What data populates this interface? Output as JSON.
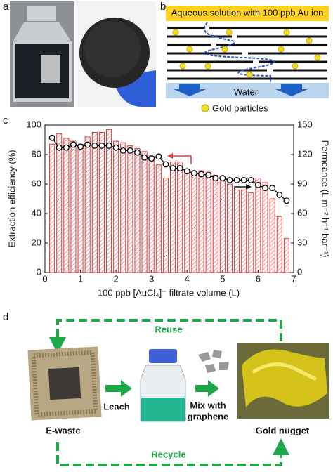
{
  "panel_labels": [
    "a",
    "b",
    "c",
    "d"
  ],
  "panel_b": {
    "top_label": "Aqueous solution with 100 ppb Au ion",
    "bottom_label": "Water",
    "legend": "Gold particles"
  },
  "chart_data": {
    "type": "combo",
    "xlabel": "100 ppb [AuCl₄]⁻ filtrate volume (L)",
    "ylabel": "Extraction efficiency (%)",
    "y2label": "Permeance (L m⁻² h⁻¹ bar⁻¹)",
    "x": [
      0.2,
      0.4,
      0.6,
      0.8,
      1.0,
      1.2,
      1.4,
      1.6,
      1.8,
      2.0,
      2.2,
      2.4,
      2.6,
      2.8,
      3.0,
      3.2,
      3.4,
      3.6,
      3.8,
      4.0,
      4.2,
      4.4,
      4.6,
      4.8,
      5.0,
      5.2,
      5.4,
      5.6,
      5.8,
      6.0,
      6.2,
      6.4,
      6.6,
      6.8
    ],
    "series": [
      {
        "type": "bar",
        "color": "#e03c3c",
        "values": [
          87,
          94,
          91,
          89,
          87,
          92,
          95,
          95,
          97,
          89,
          88,
          86,
          84,
          82,
          79,
          73,
          64,
          75,
          75,
          70,
          68,
          69,
          68,
          66,
          62,
          60,
          56,
          56,
          54,
          64,
          61,
          50,
          38,
          23
        ]
      },
      {
        "type": "line",
        "axis": "y2",
        "color": "#000000",
        "values": [
          137,
          127,
          127,
          130,
          128,
          130,
          129,
          129,
          129,
          127,
          124,
          124,
          122,
          117,
          116,
          118,
          110,
          106,
          106,
          103,
          101,
          100,
          99,
          96,
          96,
          94,
          94,
          94,
          94,
          89,
          86,
          86,
          79,
          73
        ]
      }
    ],
    "xlim": [
      0,
      7
    ],
    "xticks": [
      0,
      1,
      2,
      3,
      4,
      5,
      6,
      7
    ],
    "ylim": [
      0,
      100
    ],
    "yticks": [
      0,
      20,
      40,
      60,
      80,
      100
    ],
    "y2lim": [
      0,
      150
    ],
    "y2ticks": [
      0,
      30,
      60,
      90,
      120,
      150
    ]
  },
  "panel_d": {
    "reuse": "Reuse",
    "leach": "Leach",
    "mix": [
      "Mix with",
      "graphene"
    ],
    "ewaste": "E-waste",
    "nugget": "Gold nugget",
    "recycle": "Recycle"
  }
}
